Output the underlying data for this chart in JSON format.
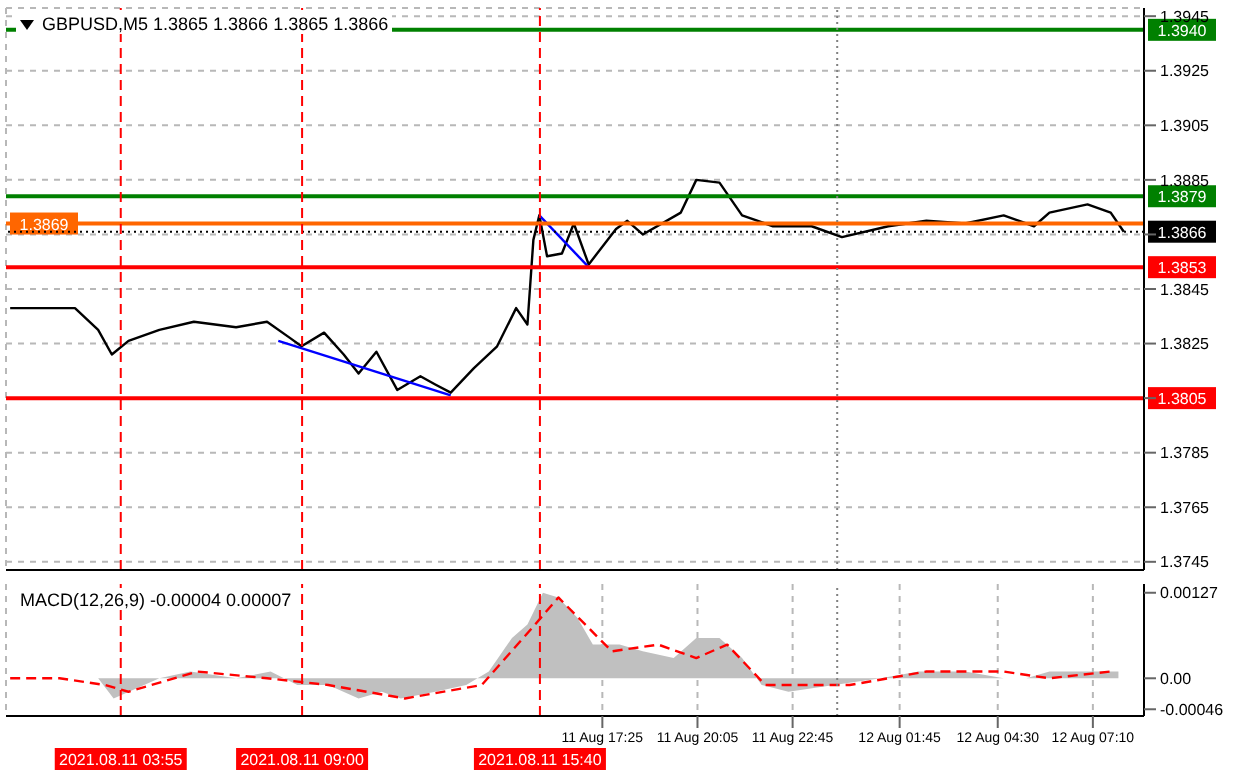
{
  "chart_data": [
    {
      "type": "line",
      "title": "GBPUSD,M5  1.3865 1.3866 1.3865 1.3866",
      "xlim": [
        "2021-08-11T00:42",
        "2021-08-12T08:36"
      ],
      "xticks": [
        {
          "value": "2021-08-11T17:25",
          "label": null
        },
        {
          "value": "2021-08-11T20:05",
          "label": null
        },
        {
          "value": "2021-08-11T22:45",
          "label": null
        },
        {
          "value": "2021-08-12T01:45",
          "label": null
        },
        {
          "value": "2021-08-12T04:30",
          "label": null
        },
        {
          "value": "2021-08-12T07:10",
          "label": null
        }
      ],
      "ylim": [
        1.3742,
        1.3948
      ],
      "yticks": [
        1.3745,
        1.3765,
        1.3785,
        {
          "value": 1.3805,
          "label": null
        },
        1.3825,
        1.3845,
        {
          "value": 1.3865,
          "label": null
        },
        1.3885,
        1.3905,
        1.3925,
        1.3945
      ],
      "grid": true,
      "tick_labels": "y",
      "series": [
        {
          "color": "#000000",
          "x": [
            "2021-08-11T00:49",
            "2021-08-11T02:38",
            "2021-08-11T03:17",
            "2021-08-11T03:40",
            "2021-08-11T04:08",
            "2021-08-11T05:00",
            "2021-08-11T05:58",
            "2021-08-11T07:09",
            "2021-08-11T08:01",
            "2021-08-11T08:40",
            "2021-08-11T08:59",
            "2021-08-11T09:37",
            "2021-08-11T10:10",
            "2021-08-11T10:35",
            "2021-08-11T11:05",
            "2021-08-11T11:40",
            "2021-08-11T12:19",
            "2021-08-11T12:44",
            "2021-08-11T13:10",
            "2021-08-11T13:49",
            "2021-08-11T14:28",
            "2021-08-11T15:00",
            "2021-08-11T15:19",
            "2021-08-11T15:29",
            "2021-08-11T15:39",
            "2021-08-11T15:52",
            "2021-08-11T16:17",
            "2021-08-11T16:37",
            "2021-08-11T17:02",
            "2021-08-11T17:48",
            "2021-08-11T18:07",
            "2021-08-11T18:33",
            "2021-08-11T19:37",
            "2021-08-11T20:03",
            "2021-08-11T20:42",
            "2021-08-11T21:20",
            "2021-08-11T22:12",
            "2021-08-11T23:17",
            "2021-08-12T00:08",
            "2021-08-12T01:26",
            "2021-08-12T02:30",
            "2021-08-12T03:35",
            "2021-08-12T04:40",
            "2021-08-12T05:31",
            "2021-08-12T05:57",
            "2021-08-12T07:01",
            "2021-08-12T07:40",
            "2021-08-12T08:02"
          ],
          "values": [
            1.3838,
            1.3838,
            1.383,
            1.3821,
            1.3826,
            1.383,
            1.3833,
            1.3831,
            1.3833,
            1.3827,
            1.3824,
            1.3829,
            1.3821,
            1.3814,
            1.3822,
            1.3808,
            1.3813,
            1.381,
            1.3807,
            1.3816,
            1.3824,
            1.3838,
            1.3832,
            1.3863,
            1.3872,
            1.3857,
            1.3858,
            1.3869,
            1.3854,
            1.3867,
            1.387,
            1.3865,
            1.3873,
            1.3885,
            1.3884,
            1.3872,
            1.3868,
            1.3868,
            1.3864,
            1.3868,
            1.387,
            1.3869,
            1.3872,
            1.3868,
            1.3873,
            1.3876,
            1.3873,
            1.3866
          ]
        },
        {
          "color": "#0000ff",
          "x": [
            "2021-08-11T08:20",
            "2021-08-11T13:10"
          ],
          "values": [
            1.3826,
            1.3806
          ]
        },
        {
          "color": "#0000ff",
          "x": [
            "2021-08-11T15:39",
            "2021-08-11T17:02"
          ],
          "values": [
            1.3872,
            1.3853
          ]
        }
      ],
      "ref_lines": [
        {
          "axis": "y",
          "value": 1.394,
          "label": "1.3940",
          "color": "#008000"
        },
        {
          "axis": "y",
          "value": 1.3879,
          "label": "1.3879",
          "color": "#008000"
        },
        {
          "axis": "y",
          "value": 1.3869,
          "label": "1.3869",
          "color": "#ff6600"
        },
        {
          "axis": "y",
          "value": 1.3866,
          "label": "1.3866",
          "color": "#000000",
          "line_style": "dotted"
        },
        {
          "axis": "y",
          "value": 1.3853,
          "label": "1.3853",
          "color": "#ff0000"
        },
        {
          "axis": "y",
          "value": 1.3805,
          "label": "1.3805",
          "color": "#ff0000"
        },
        {
          "axis": "x",
          "value": "2021-08-11T03:55",
          "color": "#ff0000",
          "line_style": "dashed"
        },
        {
          "axis": "x",
          "value": "2021-08-11T09:00",
          "color": "#ff0000",
          "line_style": "dashed"
        },
        {
          "axis": "x",
          "value": "2021-08-11T15:40",
          "color": "#ff0000",
          "line_style": "dashed"
        },
        {
          "axis": "x",
          "value": "2021-08-12T00:00",
          "color": "#808080",
          "line_style": "dotted"
        }
      ]
    },
    {
      "type": "area",
      "title": "MACD(12,26,9) -0.00004 0.00007",
      "xlim": [
        "2021-08-11T00:42",
        "2021-08-12T08:36"
      ],
      "xticks": [
        {
          "value": "2021-08-11T17:25",
          "label": "11 Aug 17:25"
        },
        {
          "value": "2021-08-11T20:05",
          "label": "11 Aug 20:05"
        },
        {
          "value": "2021-08-11T22:45",
          "label": "11 Aug 22:45"
        },
        {
          "value": "2021-08-12T01:45",
          "label": "12 Aug 01:45"
        },
        {
          "value": "2021-08-12T04:30",
          "label": "12 Aug 04:30"
        },
        {
          "value": "2021-08-12T07:10",
          "label": "12 Aug 07:10"
        }
      ],
      "ylim": [
        -0.00056,
        0.0014
      ],
      "yticks": [
        -0.00046,
        {
          "value": 0,
          "label": "0.00"
        },
        0.00127
      ],
      "grid": "x",
      "series": [
        {
          "color": "#c0c0c0",
          "x": [
            "2021-08-11T00:49",
            "2021-08-11T03:17",
            "2021-08-11T03:43",
            "2021-08-11T05:00",
            "2021-08-11T05:52",
            "2021-08-11T07:09",
            "2021-08-11T08:07",
            "2021-08-11T08:52",
            "2021-08-11T09:44",
            "2021-08-11T10:35",
            "2021-08-11T11:14",
            "2021-08-11T11:46",
            "2021-08-11T12:44",
            "2021-08-11T13:36",
            "2021-08-11T14:14",
            "2021-08-11T14:53",
            "2021-08-11T15:19",
            "2021-08-11T15:45",
            "2021-08-11T16:11",
            "2021-08-11T16:43",
            "2021-08-11T17:09",
            "2021-08-11T17:54",
            "2021-08-11T18:33",
            "2021-08-11T19:25",
            "2021-08-11T20:03",
            "2021-08-11T20:42",
            "2021-08-11T21:20",
            "2021-08-11T21:53",
            "2021-08-11T22:38",
            "2021-08-11T23:55",
            "2021-08-12T01:13",
            "2021-08-12T02:17",
            "2021-08-12T03:35",
            "2021-08-12T04:40",
            "2021-08-12T05:18",
            "2021-08-12T05:57",
            "2021-08-12T07:01",
            "2021-08-12T07:53"
          ],
          "values": [
            0,
            0,
            -0.0003,
            0,
            0.0001,
            0,
            0.0001,
            -0.0001,
            -0.0001,
            -0.0003,
            -0.0002,
            -0.0003,
            -0.0002,
            -0.0001,
            0.0001,
            0.0006,
            0.0008,
            0.00127,
            0.0012,
            0.0009,
            0.0005,
            0.0005,
            0.0004,
            0.0003,
            0.0006,
            0.0006,
            0.0003,
            -0.0001,
            -0.0002,
            -0.0001,
            0,
            0.0001,
            0.0001,
            0,
            0,
            0.0001,
            0.0001,
            0.0001
          ]
        },
        {
          "type": "line",
          "color": "#ff0000",
          "line_style": "dashed",
          "x": [
            "2021-08-11T00:49",
            "2021-08-11T02:12",
            "2021-08-11T03:29",
            "2021-08-11T04:08",
            "2021-08-11T06:04",
            "2021-08-11T08:01",
            "2021-08-11T09:44",
            "2021-08-11T11:53",
            "2021-08-11T14:02",
            "2021-08-11T15:32",
            "2021-08-11T16:11",
            "2021-08-11T17:41",
            "2021-08-11T18:59",
            "2021-08-11T20:03",
            "2021-08-11T20:55",
            "2021-08-11T21:59",
            "2021-08-11T23:04",
            "2021-08-12T00:21",
            "2021-08-12T02:30",
            "2021-08-12T04:40",
            "2021-08-12T05:57",
            "2021-08-12T07:40"
          ],
          "values": [
            0,
            0,
            -0.0001,
            -0.0002,
            0.0001,
            0,
            -0.0001,
            -0.0003,
            -0.0001,
            0.0008,
            0.0012,
            0.0004,
            0.0005,
            0.0003,
            0.0005,
            -0.0001,
            -0.0001,
            -0.0001,
            0.0001,
            0.0001,
            0,
            0.0001
          ]
        }
      ],
      "ref_lines": [
        {
          "axis": "x",
          "value": "2021-08-11T03:55",
          "label": "2021.08.11 03:55",
          "color": "#ff0000",
          "line_style": "dashed"
        },
        {
          "axis": "x",
          "value": "2021-08-11T09:00",
          "label": "2021.08.11 09:00",
          "color": "#ff0000",
          "line_style": "dashed"
        },
        {
          "axis": "x",
          "value": "2021-08-11T15:40",
          "label": "2021.08.11 15:40",
          "color": "#ff0000",
          "line_style": "dashed"
        },
        {
          "axis": "x",
          "value": "2021-08-12T00:00",
          "color": "#808080",
          "line_style": "dotted"
        }
      ]
    }
  ]
}
